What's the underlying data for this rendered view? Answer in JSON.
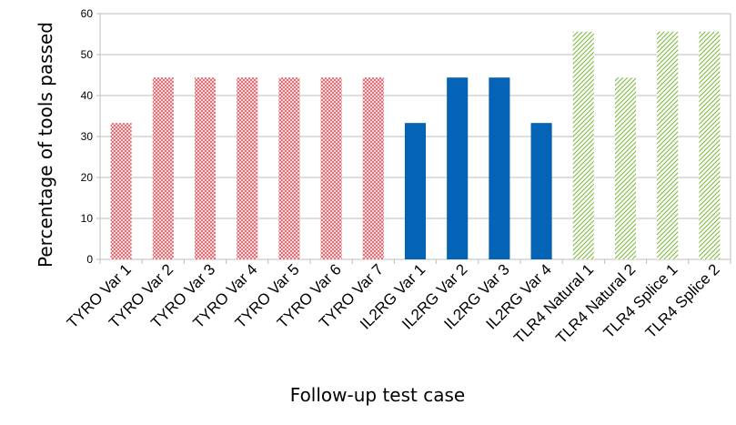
{
  "chart_data": {
    "type": "bar",
    "title": "",
    "xlabel": "Follow-up test case",
    "ylabel": "Percentage of tools passed",
    "ylim": [
      0,
      60
    ],
    "yticks": [
      0,
      10,
      20,
      30,
      40,
      50,
      60
    ],
    "grid": true,
    "legend": "none",
    "categories": [
      "TYRO Var 1",
      "TYRO Var 2",
      "TYRO Var 3",
      "TYRO Var 4",
      "TYRO Var 5",
      "TYRO Var 6",
      "TYRO Var 7",
      "IL2RG Var 1",
      "IL2RG Var 2",
      "IL2RG Var 3",
      "IL2RG Var 4",
      "TLR4 Natural 1",
      "TLR4 Natural 2",
      "TLR4 Splice 1",
      "TLR4 Splice 2"
    ],
    "values": [
      33.3,
      44.4,
      44.4,
      44.4,
      44.4,
      44.4,
      44.4,
      33.3,
      44.4,
      44.4,
      33.3,
      55.6,
      44.4,
      55.6,
      55.6
    ],
    "groups": [
      {
        "gene": "TYRO",
        "count": 7,
        "style": "crosshatch",
        "color": "#e8545c"
      },
      {
        "gene": "IL2RG",
        "count": 4,
        "style": "solid",
        "color": "#0563b5"
      },
      {
        "gene": "TLR4",
        "count": 4,
        "style": "diagonal-hatch",
        "color": "#7dbb3c"
      }
    ]
  }
}
